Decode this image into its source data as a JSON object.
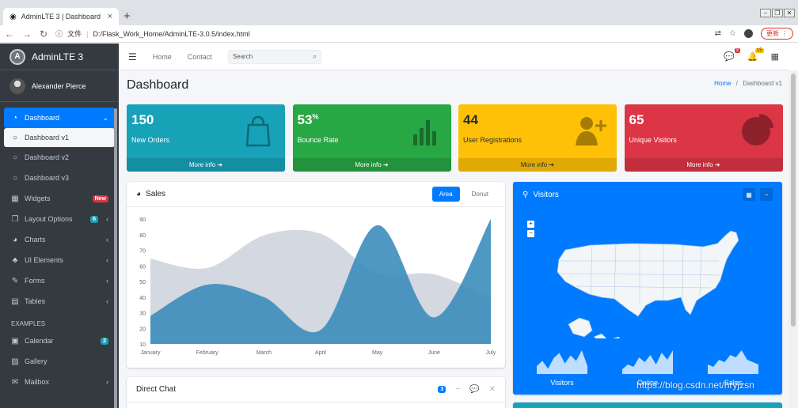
{
  "browser": {
    "tab_title": "AdminLTE 3 | Dashboard",
    "new_tab": "+",
    "security_label": "文件",
    "url": "D:/Flask_Work_Home/AdminLTE-3.0.5/index.html",
    "update_label": "更新"
  },
  "sidebar": {
    "brand": "AdminLTE 3",
    "brand_logo": "A",
    "user": "Alexander Pierce",
    "items": [
      {
        "label": "Dashboard",
        "icon": "tachometer-icon",
        "glyph": "◔",
        "state": "active",
        "arrow": "⌄"
      },
      {
        "label": "Dashboard v1",
        "icon": "circle-icon",
        "glyph": "○",
        "state": "current-sub"
      },
      {
        "label": "Dashboard v2",
        "icon": "circle-icon",
        "glyph": "○",
        "state": "sub"
      },
      {
        "label": "Dashboard v3",
        "icon": "circle-icon",
        "glyph": "○",
        "state": "sub"
      },
      {
        "label": "Widgets",
        "icon": "th-icon",
        "glyph": "▦",
        "badge": "New",
        "badge_color": "red"
      },
      {
        "label": "Layout Options",
        "icon": "copy-icon",
        "glyph": "❐",
        "badge": "6",
        "badge_color": "info",
        "arrow": "‹"
      },
      {
        "label": "Charts",
        "icon": "chart-pie-icon",
        "glyph": "◕",
        "arrow": "‹"
      },
      {
        "label": "UI Elements",
        "icon": "tree-icon",
        "glyph": "♣",
        "arrow": "‹"
      },
      {
        "label": "Forms",
        "icon": "edit-icon",
        "glyph": "✎",
        "arrow": "‹"
      },
      {
        "label": "Tables",
        "icon": "table-icon",
        "glyph": "▤",
        "arrow": "‹"
      }
    ],
    "header_examples": "EXAMPLES",
    "examples": [
      {
        "label": "Calendar",
        "icon": "calendar-icon",
        "glyph": "▣",
        "badge": "2",
        "badge_color": "info"
      },
      {
        "label": "Gallery",
        "icon": "image-icon",
        "glyph": "▨"
      },
      {
        "label": "Mailbox",
        "icon": "envelope-icon",
        "glyph": "✉",
        "arrow": "‹"
      }
    ]
  },
  "topnav": {
    "menu_icon": "☰",
    "home": "Home",
    "contact": "Contact",
    "search_placeholder": "Search",
    "messages_count": "3",
    "notifications_count": "15"
  },
  "page": {
    "title": "Dashboard",
    "breadcrumb_home": "Home",
    "breadcrumb_sep": "/",
    "breadcrumb_current": "Dashboard v1"
  },
  "small_boxes": [
    {
      "value": "150",
      "suffix": "",
      "label": "New Orders",
      "color": "#17a2b8",
      "icon": "shopping-bag-icon",
      "more": "More info ➔"
    },
    {
      "value": "53",
      "suffix": "%",
      "label": "Bounce Rate",
      "color": "#28a745",
      "icon": "stats-bars-icon",
      "more": "More info ➔"
    },
    {
      "value": "44",
      "suffix": "",
      "label": "User Registrations",
      "color": "#ffc107",
      "icon": "person-add-icon",
      "more": "More info ➔",
      "dark": true
    },
    {
      "value": "65",
      "suffix": "",
      "label": "Unique Visitors",
      "color": "#dc3545",
      "icon": "pie-graph-icon",
      "more": "More info ➔"
    }
  ],
  "sales": {
    "title": "Sales",
    "tab_area": "Area",
    "tab_donut": "Donut"
  },
  "chart_data": {
    "type": "area",
    "title": "",
    "categories": [
      "January",
      "February",
      "March",
      "April",
      "May",
      "June",
      "July"
    ],
    "y_ticks": [
      10,
      20,
      30,
      40,
      50,
      60,
      70,
      80,
      90
    ],
    "ylim": [
      10,
      90
    ],
    "series": [
      {
        "name": "",
        "values": [
          65,
          59,
          80,
          81,
          56,
          55,
          40
        ],
        "color": "#d2d6de"
      },
      {
        "name": "",
        "values": [
          28,
          48,
          40,
          19,
          86,
          27,
          90
        ],
        "color": "#3c8dbc"
      }
    ],
    "legend": "none",
    "grid": false
  },
  "visitors": {
    "title": "Visitors",
    "zoom_in": "+",
    "zoom_out": "−",
    "sparklines": [
      {
        "label": "Visitors",
        "values": [
          3,
          5,
          2,
          6,
          8,
          4,
          7,
          5,
          9,
          3
        ]
      },
      {
        "label": "Online",
        "values": [
          2,
          4,
          3,
          7,
          5,
          8,
          4,
          9,
          6,
          10
        ]
      },
      {
        "label": "Sales",
        "values": [
          4,
          3,
          6,
          5,
          8,
          7,
          10,
          6,
          5,
          4
        ]
      }
    ]
  },
  "direct_chat": {
    "title": "Direct Chat",
    "count": "3"
  },
  "watermark": "https://blog.csdn.net/hryjzsn"
}
